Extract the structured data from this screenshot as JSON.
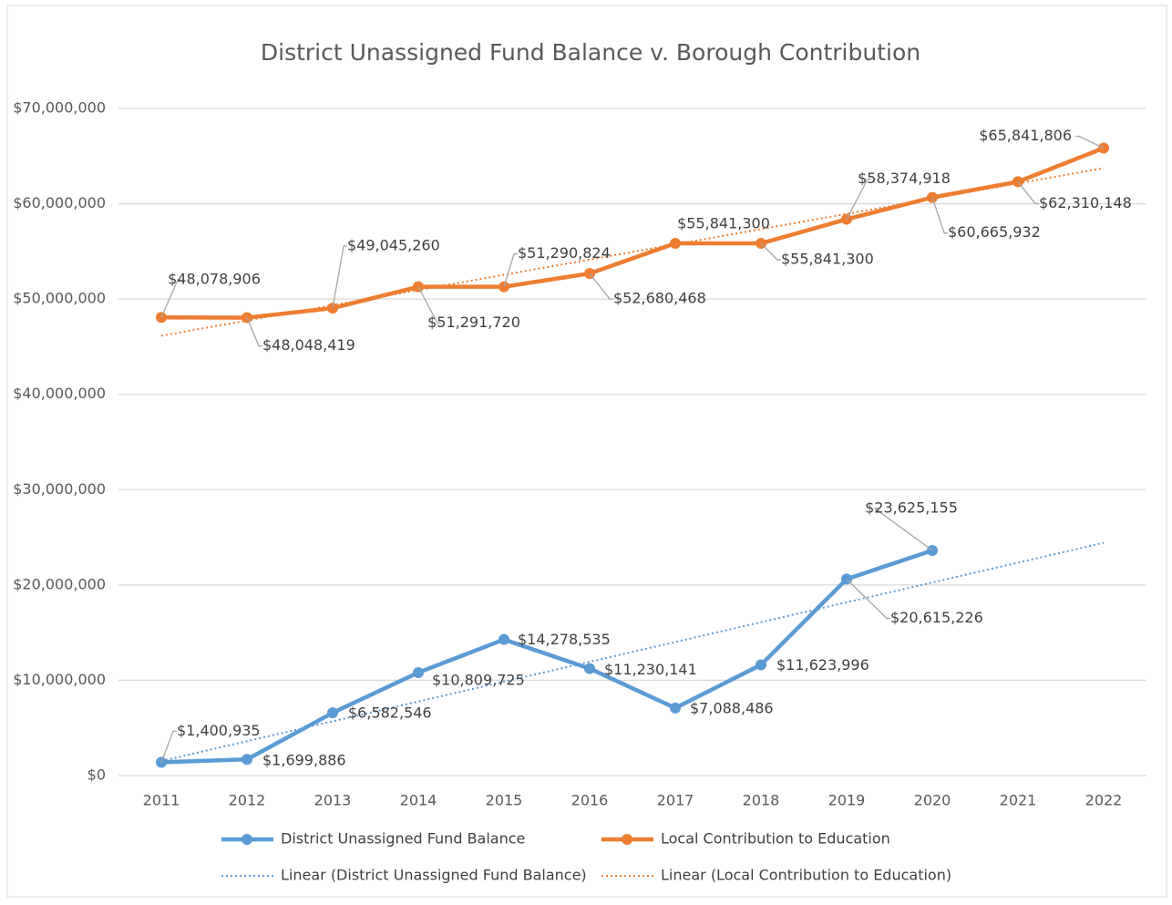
{
  "chart_data": {
    "type": "line",
    "title": "District Unassigned Fund Balance v. Borough Contribution",
    "categories": [
      "2011",
      "2012",
      "2013",
      "2014",
      "2015",
      "2016",
      "2017",
      "2018",
      "2019",
      "2020",
      "2021",
      "2022"
    ],
    "series": [
      {
        "name": "District Unassigned Fund Balance",
        "color": "#5b9bd5",
        "trendline": true,
        "trend_name": "Linear (District Unassigned Fund Balance)",
        "values": [
          1400935,
          1699886,
          6582546,
          10809725,
          14278535,
          11230141,
          7088486,
          11623996,
          20615226,
          23625155,
          null,
          null
        ],
        "value_labels": [
          "$1,400,935",
          "$1,699,886",
          "$6,582,546",
          "$10,809,725",
          "$14,278,535",
          "$11,230,141",
          "$7,088,486",
          "$11,623,996",
          "$20,615,226",
          "$23,625,155",
          null,
          null
        ]
      },
      {
        "name": "Local Contribution to Education",
        "color": "#ed7d31",
        "trendline": true,
        "trend_name": "Linear (Local Contribution to Education)",
        "values": [
          48078906,
          48048419,
          49045260,
          51291720,
          51290824,
          52680468,
          55841300,
          55841300,
          58374918,
          60665932,
          62310148,
          65841806
        ],
        "value_labels": [
          "$48,078,906",
          "$48,048,419",
          "$49,045,260",
          "$51,291,720",
          "$51,290,824",
          "$52,680,468",
          "$55,841,300",
          "$55,841,300",
          "$58,374,918",
          "$60,665,932",
          "$62,310,148",
          "$65,841,806"
        ]
      }
    ],
    "ylim": [
      0,
      70000000
    ],
    "yticks": [
      {
        "value": 0,
        "label": "$0"
      },
      {
        "value": 10000000,
        "label": "$10,000,000"
      },
      {
        "value": 20000000,
        "label": "$20,000,000"
      },
      {
        "value": 30000000,
        "label": "$30,000,000"
      },
      {
        "value": 40000000,
        "label": "$40,000,000"
      },
      {
        "value": 50000000,
        "label": "$50,000,000"
      },
      {
        "value": 60000000,
        "label": "$60,000,000"
      },
      {
        "value": 70000000,
        "label": "$70,000,000"
      }
    ],
    "grid": true,
    "legend": "bottom"
  }
}
